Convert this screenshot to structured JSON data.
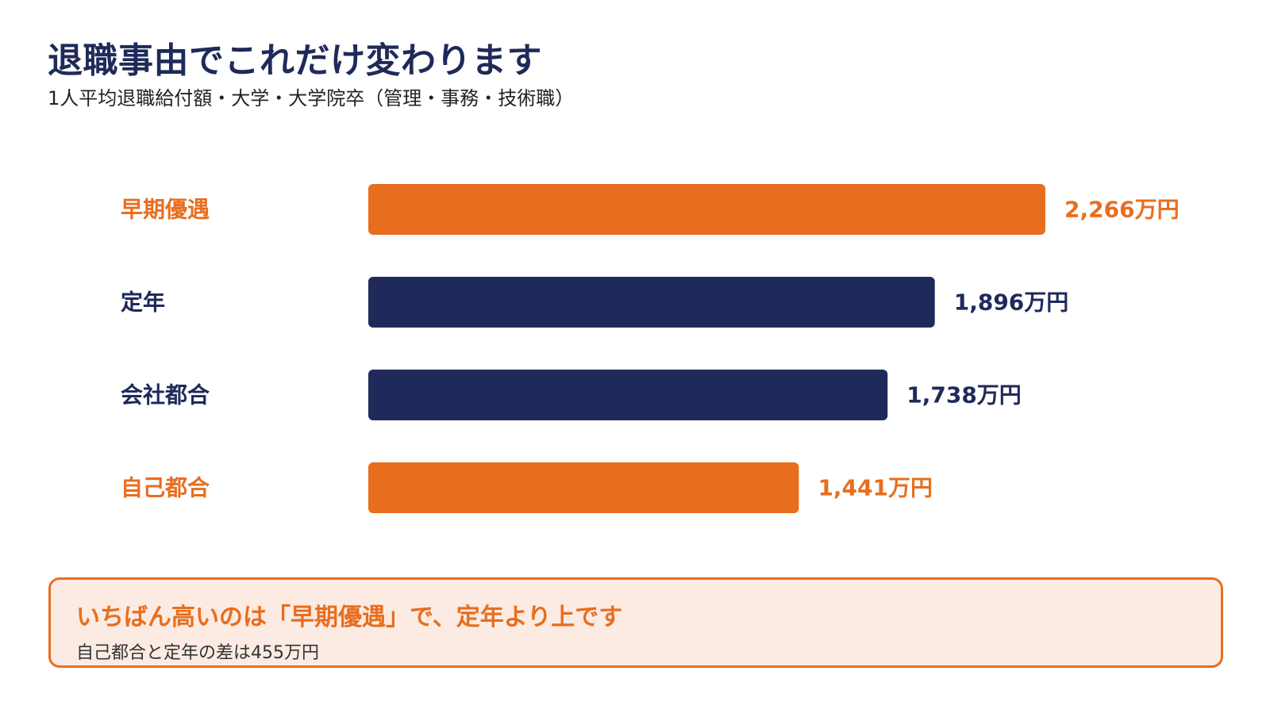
{
  "header": {
    "title": "退職事由でこれだけ変わります",
    "subtitle": "1人平均退職給付額・大学・大学院卒（管理・事務・技術職）"
  },
  "colors": {
    "navy": "#1f2a5a",
    "orange": "#e86e1f",
    "callout_background": "#fcebe2"
  },
  "chart_data": {
    "type": "bar",
    "orientation": "horizontal",
    "categories": [
      "早期優遇",
      "定年",
      "会社都合",
      "自己都合"
    ],
    "values": [
      2266,
      1896,
      1738,
      1441
    ],
    "value_labels": [
      "2,266万円",
      "1,896万円",
      "1,738万円",
      "1,441万円"
    ],
    "bar_colors": [
      "#e86e1f",
      "#1f2a5a",
      "#1f2a5a",
      "#e86e1f"
    ],
    "unit": "万円",
    "xlim": [
      0,
      2266
    ],
    "grid": false
  },
  "callout": {
    "headline": "いちばん高いのは「早期優遇」で、定年より上です",
    "note": "自己都合と定年の差は455万円"
  }
}
